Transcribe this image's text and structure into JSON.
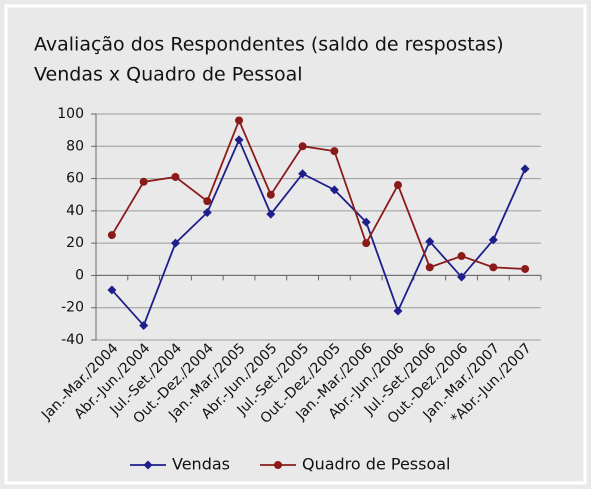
{
  "chart_data": {
    "type": "line",
    "title": "Avaliação dos Respondentes (saldo de respostas)",
    "subtitle": "Vendas x Quadro de Pessoal",
    "categories": [
      "Jan.-Mar./2004",
      "Abr.-Jun./2004",
      "Jul.-Set./2004",
      "Out.-Dez./2004",
      "Jan.-Mar./2005",
      "Abr.-Jun./2005",
      "Jul.-Set./2005",
      "Out.-Dez./2005",
      "Jan.-Mar./2006",
      "Abr.-Jun./2006",
      "Jul.-Set./2006",
      "Out.-Dez./2006",
      "Jan.-Mar./2007",
      "*Abr.-Jun./2007"
    ],
    "series": [
      {
        "name": "Vendas",
        "color": "#1f1f8c",
        "marker": "diamond",
        "values": [
          -9,
          -31,
          20,
          39,
          84,
          38,
          63,
          53,
          33,
          -22,
          21,
          -1,
          22,
          66
        ]
      },
      {
        "name": "Quadro de Pessoal",
        "color": "#8b1a1a",
        "marker": "circle",
        "values": [
          25,
          58,
          61,
          46,
          96,
          50,
          80,
          77,
          20,
          56,
          5,
          12,
          5,
          4
        ]
      }
    ],
    "ylim": [
      -40,
      100
    ],
    "yticks": [
      -40,
      -20,
      0,
      20,
      40,
      60,
      80,
      100
    ],
    "grid": true,
    "legend": "bottom"
  }
}
